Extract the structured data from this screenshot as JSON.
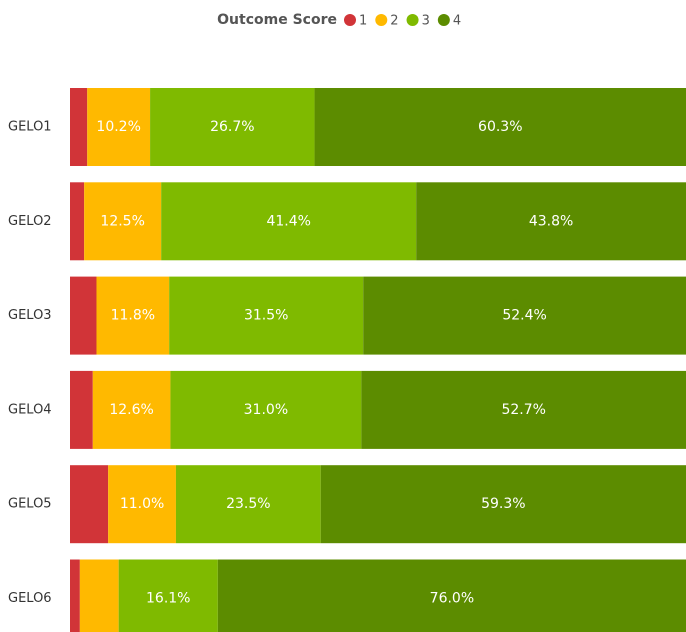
{
  "chart_data": {
    "type": "stacked-bar-horizontal",
    "legend_title": "Outcome Score",
    "categories": [
      "GELO1",
      "GELO2",
      "GELO3",
      "GELO4",
      "GELO5",
      "GELO6"
    ],
    "xlim": [
      0,
      100
    ],
    "series": [
      {
        "name": "1",
        "color": "#d13438",
        "values": [
          2.8,
          2.3,
          4.3,
          3.7,
          6.2,
          1.6
        ],
        "value_labels": [
          null,
          null,
          null,
          null,
          null,
          null
        ]
      },
      {
        "name": "2",
        "color": "#ffb900",
        "values": [
          10.2,
          12.5,
          11.8,
          12.6,
          11.0,
          6.3
        ],
        "value_labels": [
          "10.2%",
          "12.5%",
          "11.8%",
          "12.6%",
          "11.0%",
          null
        ]
      },
      {
        "name": "3",
        "color": "#7fba00",
        "values": [
          26.7,
          41.4,
          31.5,
          31.0,
          23.5,
          16.1
        ],
        "value_labels": [
          "26.7%",
          "41.4%",
          "31.5%",
          "31.0%",
          "23.5%",
          "16.1%"
        ]
      },
      {
        "name": "4",
        "color": "#5c8c00",
        "values": [
          60.3,
          43.8,
          52.4,
          52.7,
          59.3,
          76.0
        ],
        "value_labels": [
          "60.3%",
          "43.8%",
          "52.4%",
          "52.7%",
          "59.3%",
          "76.0%"
        ]
      }
    ]
  }
}
